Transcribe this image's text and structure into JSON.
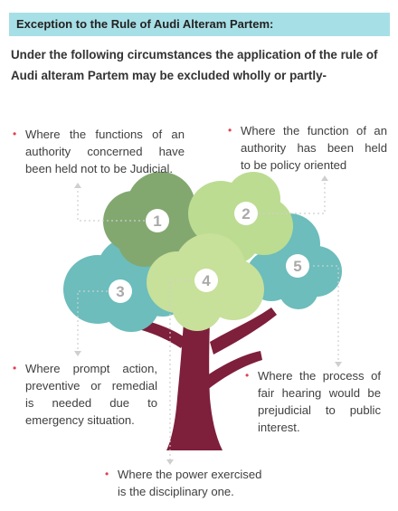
{
  "title": "Exception to the Rule of Audi Alteram Partem:",
  "intro": [
    "Under the following circumstances the application of the rule of",
    "Audi alteram Partem may be excluded wholly or partly-"
  ],
  "bullet_symbol": "•",
  "circles": [
    "1",
    "2",
    "3",
    "4",
    "5"
  ],
  "points": [
    {
      "number": "1",
      "lines": [
        "Where the functions of an",
        "authority concerned have",
        "been held not to be Judicial."
      ]
    },
    {
      "number": "2",
      "lines": [
        "Where the function of an",
        "authority has been held",
        "to be policy oriented"
      ]
    },
    {
      "number": "3",
      "lines": [
        "Where prompt action,",
        "preventive or remedial",
        "is needed due to",
        "emergency situation."
      ]
    },
    {
      "number": "4",
      "lines": [
        "Where the power exercised",
        "is the disciplinary one."
      ]
    },
    {
      "number": "5",
      "lines": [
        "Where the process of",
        "fair hearing would be",
        "prejudicial to public",
        "interest."
      ]
    }
  ],
  "colors": {
    "title_bg": "#a7dfe6",
    "bullet": "#e2404f",
    "trunk": "#7e1f3b",
    "cluster_1": "#82a870",
    "cluster_2": "#bcdc92",
    "cluster_3": "#6cbdbc",
    "cluster_4": "#c7e09a",
    "cluster_5": "#6cbdbc"
  }
}
